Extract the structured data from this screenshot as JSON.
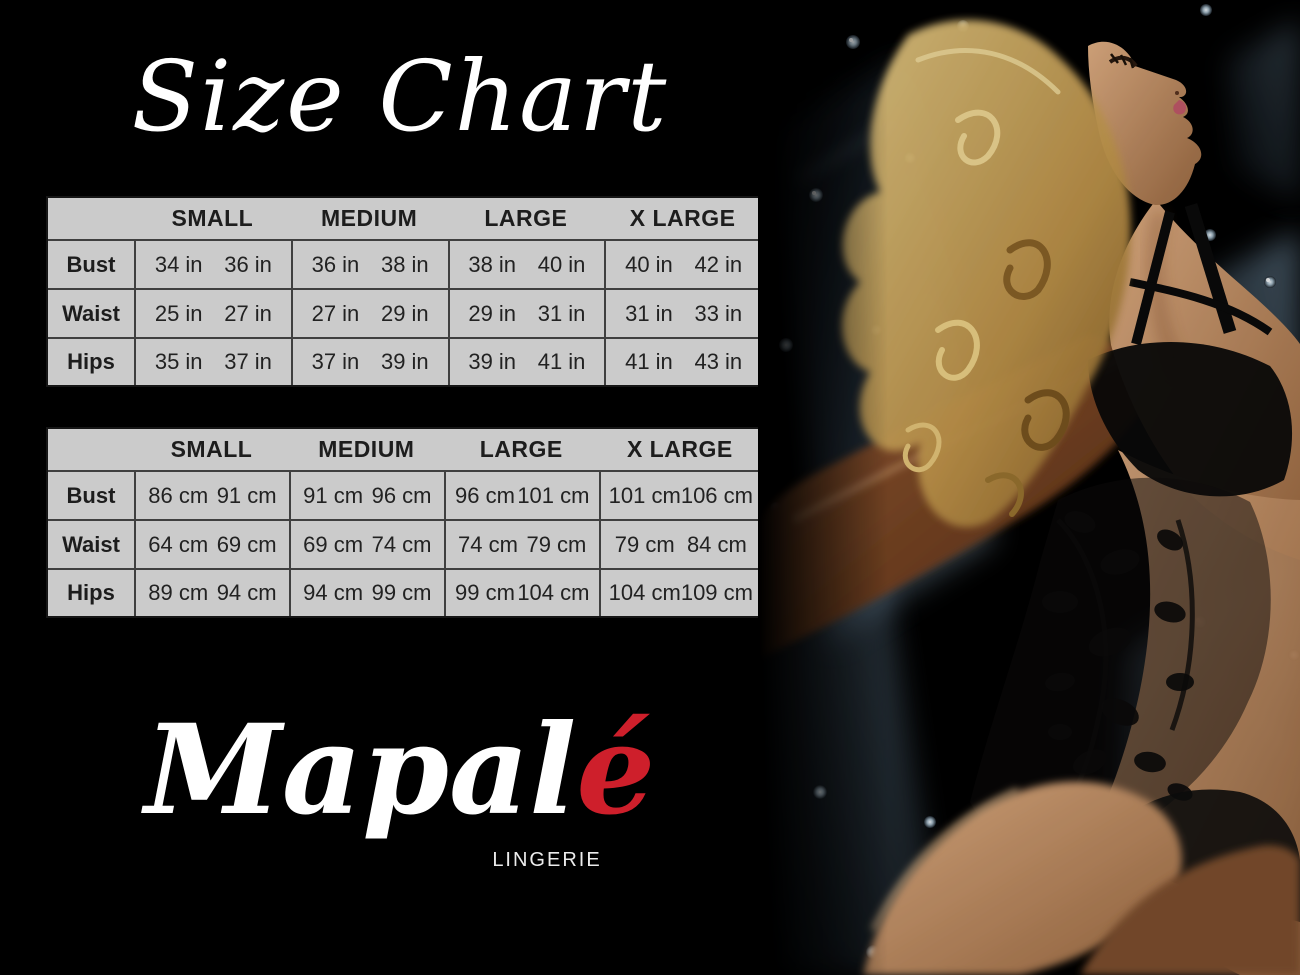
{
  "page": {
    "title": "Size Chart",
    "background_color": "#000000"
  },
  "brand": {
    "name": "Mapalé",
    "name_main": "Mapal",
    "name_accent": "é",
    "tagline": "LINGERIE",
    "accent_color": "#ce1f2b",
    "logo_color": "#ffffff"
  },
  "table_style": {
    "cell_background": "#cbcbcb",
    "grid_line_color": "#3f3f3f",
    "text_color": "#1d1d1d"
  },
  "chart_data": [
    {
      "type": "table",
      "title": "Size Chart",
      "unit": "in",
      "columns": [
        "SMALL",
        "MEDIUM",
        "LARGE",
        "X LARGE"
      ],
      "rows": [
        {
          "label": "Bust",
          "values": [
            [
              34,
              36
            ],
            [
              36,
              38
            ],
            [
              38,
              40
            ],
            [
              40,
              42
            ]
          ]
        },
        {
          "label": "Waist",
          "values": [
            [
              25,
              27
            ],
            [
              27,
              29
            ],
            [
              29,
              31
            ],
            [
              31,
              33
            ]
          ]
        },
        {
          "label": "Hips",
          "values": [
            [
              35,
              37
            ],
            [
              37,
              39
            ],
            [
              39,
              41
            ],
            [
              41,
              43
            ]
          ]
        }
      ]
    },
    {
      "type": "table",
      "title": "Size Chart",
      "unit": "cm",
      "columns": [
        "SMALL",
        "MEDIUM",
        "LARGE",
        "X LARGE"
      ],
      "rows": [
        {
          "label": "Bust",
          "values": [
            [
              86,
              91
            ],
            [
              91,
              96
            ],
            [
              96,
              101
            ],
            [
              101,
              106
            ]
          ]
        },
        {
          "label": "Waist",
          "values": [
            [
              64,
              69
            ],
            [
              69,
              74
            ],
            [
              74,
              79
            ],
            [
              79,
              84
            ]
          ]
        },
        {
          "label": "Hips",
          "values": [
            [
              89,
              94
            ],
            [
              94,
              99
            ],
            [
              99,
              104
            ],
            [
              104,
              109
            ]
          ]
        }
      ]
    }
  ],
  "photo": {
    "alt": "Blonde model in black lace bodysuit leaning back against dark blue tufted upholstery"
  }
}
